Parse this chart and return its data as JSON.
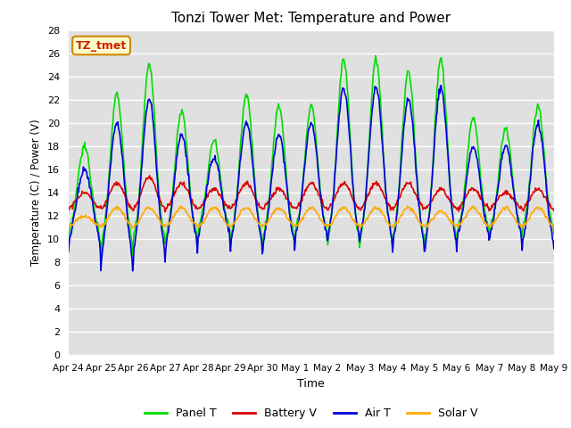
{
  "title": "Tonzi Tower Met: Temperature and Power",
  "xlabel": "Time",
  "ylabel": "Temperature (C) / Power (V)",
  "ylim": [
    0,
    28
  ],
  "bg_color": "#e0e0e0",
  "fig_bg": "#ffffff",
  "grid_color": "#ffffff",
  "legend_labels": [
    "Panel T",
    "Battery V",
    "Air T",
    "Solar V"
  ],
  "legend_colors": [
    "#00dd00",
    "#dd0000",
    "#0000dd",
    "#ffaa00"
  ],
  "xtick_labels": [
    "Apr 24",
    "Apr 25",
    "Apr 26",
    "Apr 27",
    "Apr 28",
    "Apr 29",
    "Apr 30",
    "May 1",
    "May 2",
    "May 3",
    "May 4",
    "May 5",
    "May 6",
    "May 7",
    "May 8",
    "May 9"
  ],
  "watermark_text": "TZ_tmet",
  "watermark_color": "#cc2200",
  "watermark_bg": "#ffffcc",
  "line_width": 1.2
}
